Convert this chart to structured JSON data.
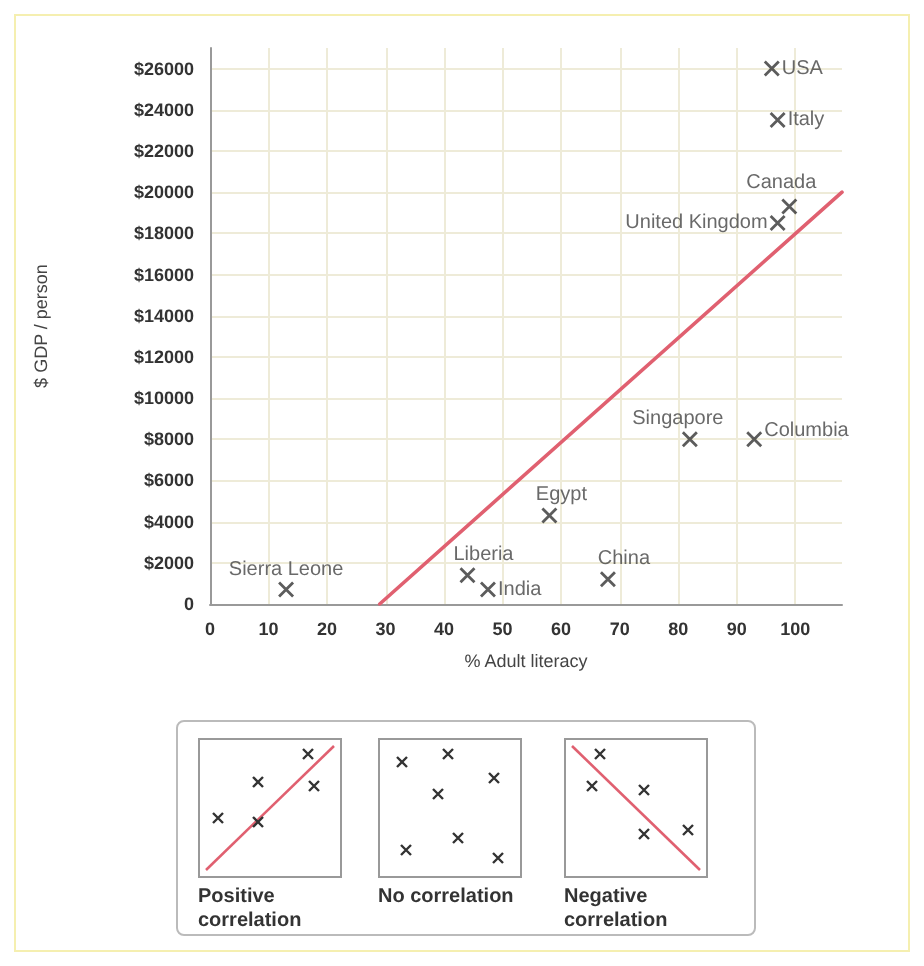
{
  "chart_data": {
    "type": "scatter",
    "xlabel": "% Adult literacy",
    "ylabel": "$ GDP / person",
    "series": [
      {
        "color": "#333333",
        "x": [
          96,
          97,
          99,
          97,
          82,
          93,
          58,
          44,
          47.5,
          68,
          13
        ],
        "values": [
          26000,
          23500,
          19300,
          18500,
          8000,
          8000,
          4300,
          1400,
          700,
          1200,
          700
        ]
      },
      {
        "type": "line",
        "marker": "none",
        "color": "#e06070",
        "x": [
          29,
          108
        ],
        "values": [
          0,
          20000
        ]
      }
    ],
    "xlim": [
      0,
      108
    ],
    "xticks": [
      0,
      10,
      20,
      30,
      40,
      50,
      60,
      70,
      80,
      90,
      100
    ],
    "ylim": [
      0,
      27000
    ],
    "yticks": [
      0,
      {
        "value": 2000,
        "label": "$2000"
      },
      {
        "value": 4000,
        "label": "$4000"
      },
      {
        "value": 6000,
        "label": "$6000"
      },
      {
        "value": 8000,
        "label": "$8000"
      },
      {
        "value": 10000,
        "label": "$10000"
      },
      {
        "value": 12000,
        "label": "$12000"
      },
      {
        "value": 14000,
        "label": "$14000"
      },
      {
        "value": 16000,
        "label": "$16000"
      },
      {
        "value": 18000,
        "label": "$18000"
      },
      {
        "value": 20000,
        "label": "$20000"
      },
      {
        "value": 22000,
        "label": "$22000"
      },
      {
        "value": 24000,
        "label": "$24000"
      },
      {
        "value": 26000,
        "label": "$26000"
      }
    ],
    "grid": true,
    "marker": "cross",
    "annotations": [
      {
        "text": "USA",
        "x": 96,
        "y": 26000
      },
      {
        "text": "Italy",
        "x": 97,
        "y": 23500
      },
      {
        "text": "Canada",
        "x": 99,
        "y": 19300
      },
      {
        "text": "United Kingdom",
        "x": 97,
        "y": 18500
      },
      {
        "text": "Singapore",
        "x": 82,
        "y": 8000
      },
      {
        "text": "Columbia",
        "x": 93,
        "y": 8000
      },
      {
        "text": "Egypt",
        "x": 58,
        "y": 4300
      },
      {
        "text": "Liberia",
        "x": 44,
        "y": 1400
      },
      {
        "text": "India",
        "x": 47.5,
        "y": 700
      },
      {
        "text": "China",
        "x": 68,
        "y": 1200
      },
      {
        "text": "Sierra Leone",
        "x": 13,
        "y": 700
      },
      "Positive correlation",
      "No correlation",
      "Negative correlation"
    ]
  }
}
